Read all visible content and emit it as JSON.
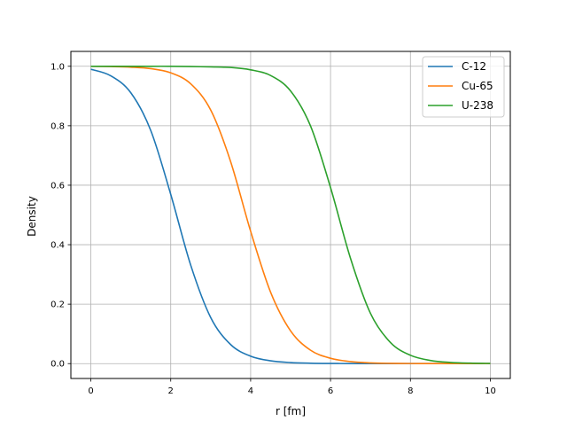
{
  "chart_data": {
    "type": "line",
    "title": "",
    "xlabel": "r [fm]",
    "ylabel": "Density",
    "xlim": [
      -0.5,
      10.5
    ],
    "ylim": [
      -0.05,
      1.05
    ],
    "x_ticks": [
      0,
      2,
      4,
      6,
      8,
      10
    ],
    "x_tick_labels": [
      "0",
      "2",
      "4",
      "6",
      "8",
      "10"
    ],
    "y_ticks": [
      0.0,
      0.2,
      0.4,
      0.6,
      0.8,
      1.0
    ],
    "y_tick_labels": [
      "0.0",
      "0.2",
      "0.4",
      "0.6",
      "0.8",
      "1.0"
    ],
    "grid": true,
    "legend_position": "upper right",
    "x": [
      0,
      0.5,
      1,
      1.5,
      2,
      2.5,
      3,
      3.5,
      4,
      4.5,
      5,
      5.5,
      6,
      6.5,
      7,
      7.5,
      8,
      8.5,
      9,
      9.5,
      10
    ],
    "series": [
      {
        "name": "C-12",
        "color": "#1f77b4",
        "values": [
          0.99,
          0.968,
          0.911,
          0.784,
          0.569,
          0.331,
          0.155,
          0.064,
          0.025,
          0.0094,
          0.0035,
          0.0013,
          0.0005,
          0.0002,
          0.0001,
          0.0,
          0.0,
          0.0,
          0.0,
          0.0,
          0.0
        ]
      },
      {
        "name": "Cu-65",
        "color": "#ff7f0e",
        "values": [
          1.0,
          0.999,
          0.997,
          0.992,
          0.978,
          0.941,
          0.853,
          0.679,
          0.445,
          0.24,
          0.11,
          0.045,
          0.018,
          0.0068,
          0.0025,
          0.0009,
          0.0003,
          0.0001,
          0.0,
          0.0,
          0.0
        ]
      },
      {
        "name": "U-238",
        "color": "#2ca02c",
        "values": [
          1.0,
          1.0,
          1.0,
          1.0,
          1.0,
          0.999,
          0.998,
          0.996,
          0.988,
          0.969,
          0.917,
          0.799,
          0.592,
          0.354,
          0.169,
          0.071,
          0.028,
          0.0106,
          0.004,
          0.0015,
          0.0005
        ]
      }
    ]
  }
}
